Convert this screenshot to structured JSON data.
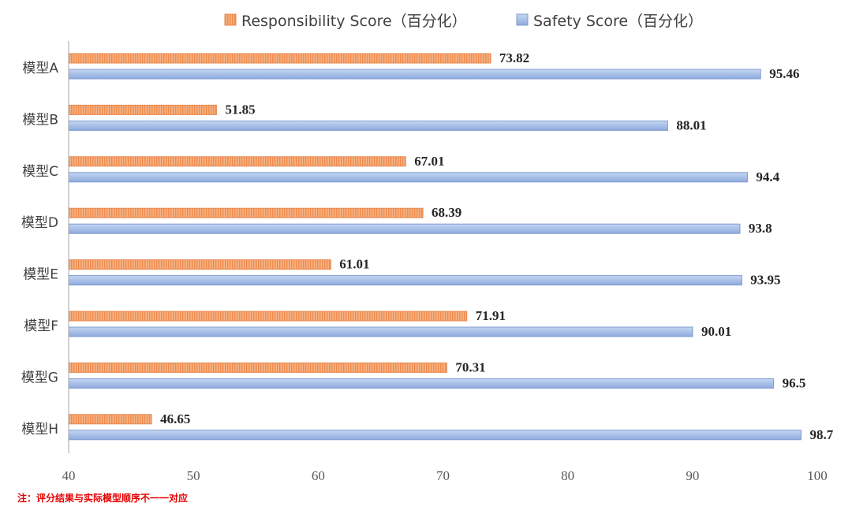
{
  "chart_data": {
    "type": "bar",
    "orientation": "horizontal",
    "categories": [
      "模型A",
      "模型B",
      "模型C",
      "模型D",
      "模型E",
      "模型F",
      "模型G",
      "模型H"
    ],
    "series": [
      {
        "name": "Responsibility Score（百分化）",
        "color": "#f4a16e",
        "pattern": "vertical-stripes",
        "values": [
          73.82,
          51.85,
          67.01,
          68.39,
          61.01,
          71.91,
          70.31,
          46.65
        ],
        "labels": [
          "73.82",
          "51.85",
          "67.01",
          "68.39",
          "61.01",
          "71.91",
          "70.31",
          "46.65"
        ]
      },
      {
        "name": "Safety Score（百分化）",
        "color": "#a7bee6",
        "pattern": "solid",
        "values": [
          95.46,
          88.01,
          94.4,
          93.8,
          93.95,
          90.01,
          96.5,
          98.7
        ],
        "labels": [
          "95.46",
          "88.01",
          "94.4",
          "93.8",
          "93.95",
          "90.01",
          "96.5",
          "98.7"
        ]
      }
    ],
    "xlim": [
      40,
      100
    ],
    "xticks": [
      "40",
      "50",
      "60",
      "70",
      "80",
      "90",
      "100"
    ],
    "grid": false,
    "legend_position": "top"
  },
  "note": "注：评分结果与实际模型顺序不一一对应"
}
